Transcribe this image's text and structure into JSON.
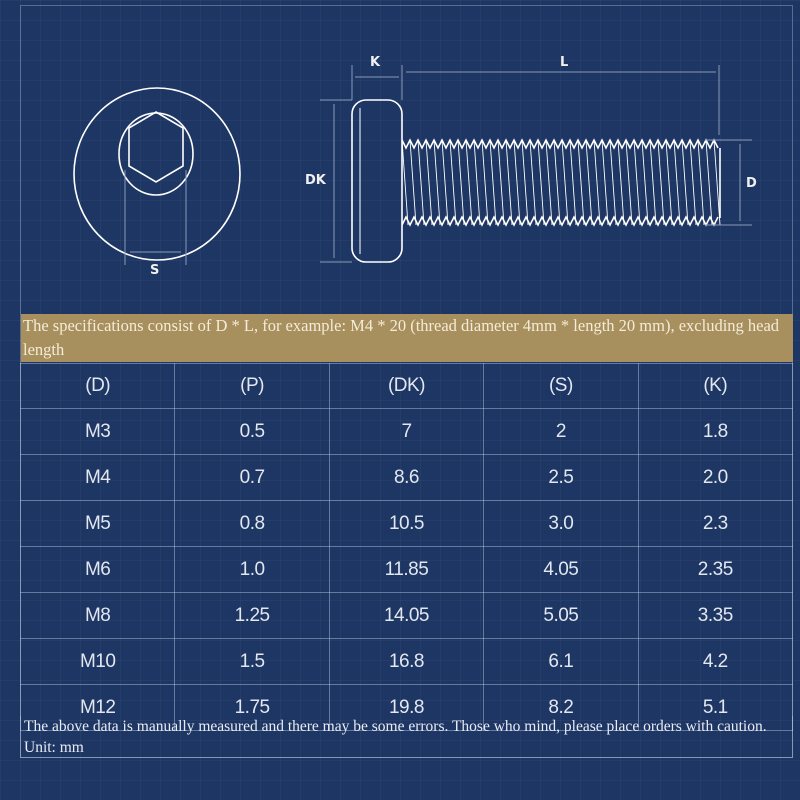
{
  "diagram": {
    "labels": {
      "k": "K",
      "l": "L",
      "dk": "DK",
      "d": "D",
      "s": "S"
    }
  },
  "banner_text": "The specifications consist of D * L, for example: M4 * 20 (thread diameter 4mm * length 20 mm), excluding head length",
  "table": {
    "headers": [
      "(D)",
      "(P)",
      "(DK)",
      "(S)",
      "(K)"
    ],
    "rows": [
      [
        "M3",
        "0.5",
        "7",
        "2",
        "1.8"
      ],
      [
        "M4",
        "0.7",
        "8.6",
        "2.5",
        "2.0"
      ],
      [
        "M5",
        "0.8",
        "10.5",
        "3.0",
        "2.3"
      ],
      [
        "M6",
        "1.0",
        "11.85",
        "4.05",
        "2.35"
      ],
      [
        "M8",
        "1.25",
        "14.05",
        "5.05",
        "3.35"
      ],
      [
        "M10",
        "1.5",
        "16.8",
        "6.1",
        "4.2"
      ],
      [
        "M12",
        "1.75",
        "19.8",
        "8.2",
        "5.1"
      ]
    ]
  },
  "note": "The above data is manually measured and there may be some errors. Those who mind, please place orders with caution. Unit: mm",
  "colors": {
    "background": "#1e3663",
    "banner": "#a88f5e",
    "line": "#ffffff"
  }
}
